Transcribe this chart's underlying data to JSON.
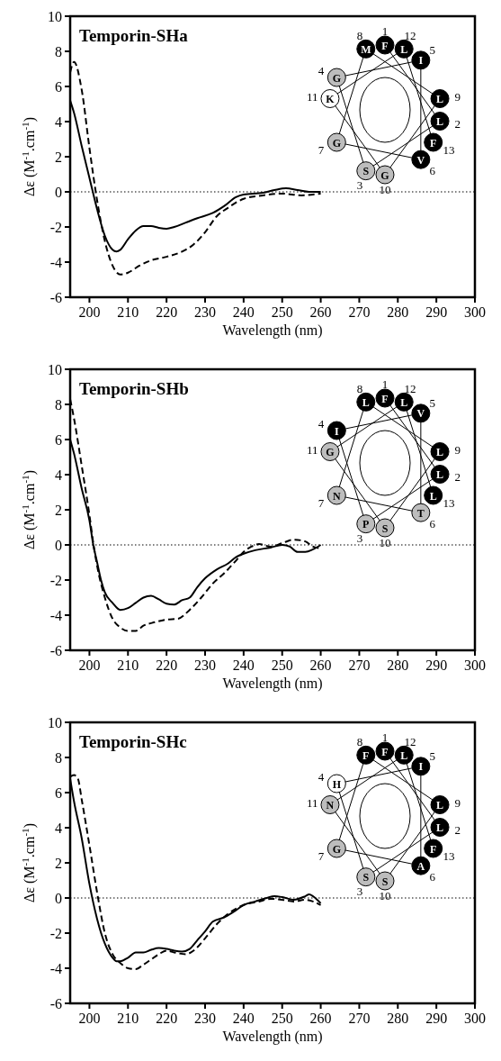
{
  "chart_data": [
    {
      "type": "line",
      "title": "Temporin-SHa",
      "xlabel": "Wavelength (nm)",
      "ylabel": "Δε (M$^{-1}$.cm$^{-1}$)",
      "xlim": [
        195,
        300
      ],
      "xticks": [
        200,
        210,
        220,
        230,
        240,
        250,
        260,
        270,
        280,
        290,
        300
      ],
      "ylim": [
        -6,
        10
      ],
      "yticks": [
        -6,
        -4,
        -2,
        0,
        2,
        4,
        6,
        8,
        10
      ],
      "grid": false,
      "ref_lines": [
        {
          "axis": "y",
          "value": 0,
          "line_style": "dotted"
        }
      ],
      "annotations": [
        "F",
        "1",
        "L",
        "2",
        "S",
        "3",
        "G",
        "4",
        "I",
        "5",
        "V",
        "6",
        "G",
        "7",
        "M",
        "8",
        "L",
        "9",
        "G",
        "10",
        "K",
        "11",
        "L",
        "12",
        "F",
        "13"
      ],
      "series": [
        {
          "color": "#000000",
          "line_style": "solid",
          "x": [
            195,
            196,
            198,
            200,
            202,
            204,
            206,
            207,
            208,
            210,
            212,
            214,
            216,
            218,
            220,
            222,
            225,
            228,
            232,
            235,
            238,
            240,
            245,
            248,
            251,
            254,
            257,
            260
          ],
          "values": [
            5.2,
            4.5,
            2.6,
            0.8,
            -1,
            -2.5,
            -3.3,
            -3.4,
            -3.3,
            -2.7,
            -2.2,
            -1.95,
            -1.95,
            -2.05,
            -2.1,
            -2,
            -1.75,
            -1.5,
            -1.2,
            -0.8,
            -0.3,
            -0.15,
            -0.05,
            0.1,
            0.2,
            0.1,
            0,
            0
          ]
        },
        {
          "color": "#000000",
          "line_style": "dashed",
          "x": [
            195,
            196,
            198,
            200,
            202,
            204,
            206,
            208,
            210,
            213,
            216,
            220,
            224,
            227,
            230,
            233,
            236,
            240,
            245,
            250,
            255,
            258,
            260
          ],
          "values": [
            6.8,
            7.4,
            5.8,
            2.5,
            -0.5,
            -2.8,
            -4.2,
            -4.7,
            -4.6,
            -4.2,
            -3.9,
            -3.7,
            -3.4,
            -3,
            -2.3,
            -1.4,
            -0.9,
            -0.4,
            -0.2,
            -0.1,
            -0.2,
            -0.15,
            -0.1
          ]
        }
      ]
    },
    {
      "type": "line",
      "title": "Temporin-SHb",
      "xlabel": "Wavelength (nm)",
      "ylabel": "Δε (M$^{-1}$.cm$^{-1}$)",
      "xlim": [
        195,
        300
      ],
      "xticks": [
        200,
        210,
        220,
        230,
        240,
        250,
        260,
        270,
        280,
        290,
        300
      ],
      "ylim": [
        -6,
        10
      ],
      "yticks": [
        -6,
        -4,
        -2,
        0,
        2,
        4,
        6,
        8,
        10
      ],
      "grid": false,
      "ref_lines": [
        {
          "axis": "y",
          "value": 0,
          "line_style": "dotted"
        }
      ],
      "annotations": [
        "F",
        "1",
        "L",
        "2",
        "P",
        "3",
        "I",
        "4",
        "V",
        "5",
        "T",
        "6",
        "N",
        "7",
        "L",
        "8",
        "L",
        "9",
        "S",
        "10",
        "G",
        "11",
        "L",
        "12",
        "L",
        "13"
      ],
      "series": [
        {
          "color": "#000000",
          "line_style": "solid",
          "x": [
            195,
            196,
            198,
            200,
            201,
            202,
            203,
            204,
            206,
            208,
            210,
            212,
            214,
            216,
            218,
            220,
            222,
            224,
            226,
            228,
            230,
            233,
            236,
            238,
            240,
            243,
            247,
            250,
            252,
            254,
            256,
            258,
            260
          ],
          "values": [
            6,
            5.2,
            3.2,
            1.4,
            0,
            -1,
            -2,
            -2.7,
            -3.3,
            -3.7,
            -3.6,
            -3.3,
            -3,
            -2.9,
            -3.1,
            -3.35,
            -3.4,
            -3.15,
            -3,
            -2.4,
            -1.9,
            -1.4,
            -1.05,
            -0.7,
            -0.5,
            -0.3,
            -0.15,
            0,
            -0.1,
            -0.4,
            -0.4,
            -0.25,
            0
          ]
        },
        {
          "color": "#000000",
          "line_style": "dashed",
          "x": [
            195,
            196,
            198,
            200,
            201,
            202,
            204,
            206,
            208,
            210,
            212,
            214,
            217,
            220,
            223,
            226,
            229,
            232,
            235,
            238,
            240,
            242,
            244,
            247,
            250,
            253,
            256,
            258,
            260
          ],
          "values": [
            8.3,
            7.2,
            4.5,
            1.7,
            0.1,
            -1.2,
            -3,
            -4.2,
            -4.7,
            -4.9,
            -4.9,
            -4.6,
            -4.4,
            -4.25,
            -4.2,
            -3.7,
            -3,
            -2.2,
            -1.6,
            -0.9,
            -0.4,
            -0.1,
            0.05,
            -0.1,
            0.1,
            0.3,
            0.2,
            -0.1,
            -0.2
          ]
        }
      ]
    },
    {
      "type": "line",
      "title": "Temporin-SHc",
      "xlabel": "Wavelength (nm)",
      "ylabel": "Δε (M$^{-1}$.cm$^{-1}$)",
      "xlim": [
        195,
        300
      ],
      "xticks": [
        200,
        210,
        220,
        230,
        240,
        250,
        260,
        270,
        280,
        290,
        300
      ],
      "ylim": [
        -6,
        10
      ],
      "yticks": [
        -6,
        -4,
        -2,
        0,
        2,
        4,
        6,
        8,
        10
      ],
      "grid": false,
      "ref_lines": [
        {
          "axis": "y",
          "value": 0,
          "line_style": "dotted"
        }
      ],
      "annotations": [
        "F",
        "1",
        "L",
        "2",
        "S",
        "3",
        "H",
        "4",
        "I",
        "5",
        "A",
        "6",
        "G",
        "7",
        "F",
        "8",
        "L",
        "9",
        "S",
        "10",
        "N",
        "11",
        "L",
        "12",
        "F",
        "13"
      ],
      "series": [
        {
          "color": "#000000",
          "line_style": "solid",
          "x": [
            195,
            196,
            198,
            200,
            202,
            204,
            206,
            207,
            208,
            210,
            212,
            214,
            216,
            218,
            220,
            222,
            224,
            226,
            228,
            230,
            232,
            235,
            238,
            240,
            243,
            246,
            248,
            250,
            253,
            256,
            257,
            258,
            260
          ],
          "values": [
            6.8,
            5.5,
            3.4,
            0.8,
            -1.2,
            -2.6,
            -3.4,
            -3.6,
            -3.6,
            -3.4,
            -3.1,
            -3.1,
            -2.95,
            -2.85,
            -2.9,
            -3,
            -3.05,
            -2.9,
            -2.4,
            -1.9,
            -1.35,
            -1.1,
            -0.7,
            -0.4,
            -0.2,
            0,
            0.1,
            0.05,
            -0.1,
            0.1,
            0.2,
            0.1,
            -0.3
          ]
        },
        {
          "color": "#000000",
          "line_style": "dashed",
          "x": [
            195,
            196,
            197,
            198,
            200,
            202,
            204,
            206,
            208,
            210,
            212,
            214,
            216,
            218,
            220,
            222,
            225,
            227,
            230,
            233,
            236,
            240,
            244,
            247,
            250,
            253,
            256,
            258,
            260
          ],
          "values": [
            6.9,
            7,
            6.8,
            5.6,
            3,
            0.3,
            -2,
            -3.2,
            -3.7,
            -4,
            -4.05,
            -3.8,
            -3.5,
            -3.2,
            -3,
            -3.1,
            -3.2,
            -3,
            -2.3,
            -1.5,
            -0.9,
            -0.4,
            -0.2,
            -0.05,
            -0.1,
            -0.2,
            -0.1,
            -0.2,
            -0.4
          ]
        }
      ]
    }
  ]
}
